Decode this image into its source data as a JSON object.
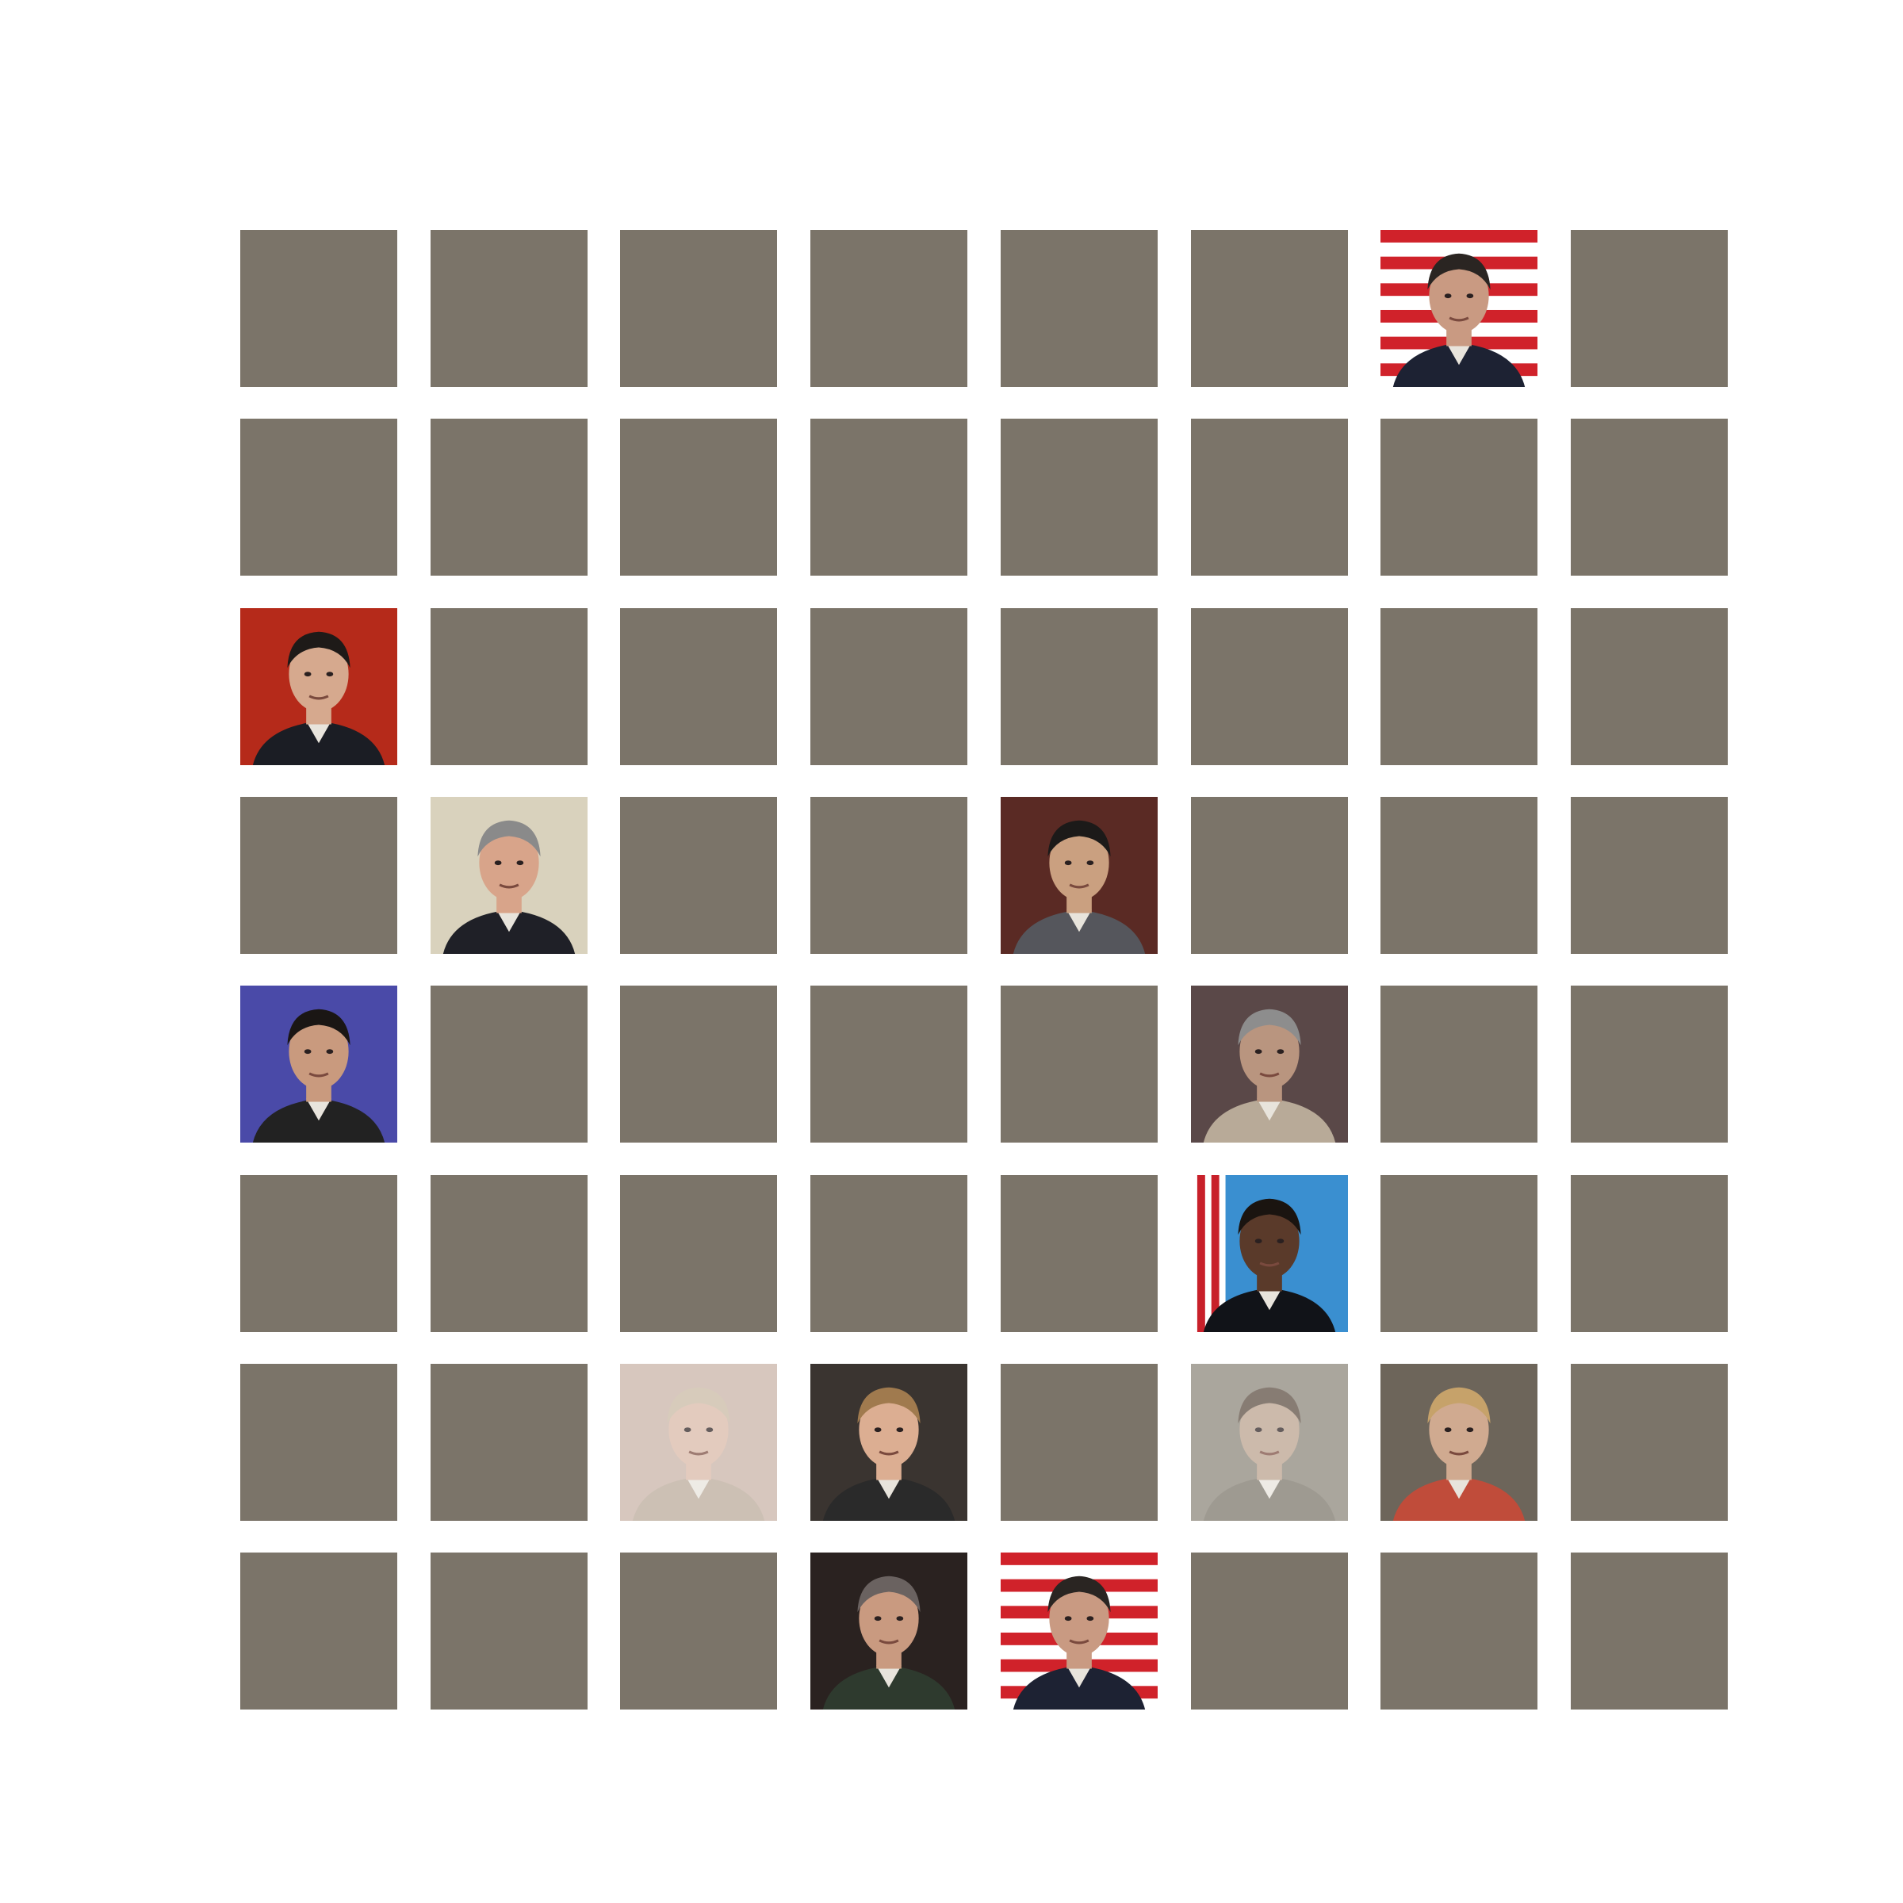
{
  "grid": {
    "rows": 8,
    "cols": 8,
    "blank_color": "#7b7469",
    "photos": [
      {
        "row": 0,
        "col": 6,
        "bg": "flag-stripes",
        "skin": "#c99a82",
        "hair": "#2a2522",
        "suit": "#1d2233",
        "name": "portrait-photo-man-flag"
      },
      {
        "row": 2,
        "col": 0,
        "bg": "#b52a1a",
        "skin": "#d6a98e",
        "hair": "#1e1a18",
        "suit": "#1b1d24",
        "name": "portrait-photo-man-red-background"
      },
      {
        "row": 3,
        "col": 1,
        "bg": "#d9d2bd",
        "skin": "#d8a48a",
        "hair": "#8a8a8a",
        "suit": "#1f2027",
        "name": "portrait-photo-older-man-gray-hair"
      },
      {
        "row": 3,
        "col": 4,
        "bg": "#5a2a24",
        "skin": "#caa080",
        "hair": "#1c1a19",
        "suit": "#55565c",
        "name": "portrait-photo-man-glasses"
      },
      {
        "row": 4,
        "col": 0,
        "bg": "#4a4aa8",
        "skin": "#c99a7e",
        "hair": "#1a1614",
        "suit": "#222222",
        "name": "portrait-photo-man-blue-background"
      },
      {
        "row": 4,
        "col": 5,
        "bg": "#5a4848",
        "skin": "#b9957f",
        "hair": "#8d8d8d",
        "suit": "#b8aa98",
        "name": "portrait-photo-man-glasses-mustache"
      },
      {
        "row": 5,
        "col": 5,
        "bg": "flag-blue",
        "skin": "#5a3a2a",
        "hair": "#1a1410",
        "suit": "#111318",
        "name": "portrait-photo-man-flags"
      },
      {
        "row": 6,
        "col": 2,
        "bg": "#c9b2a6",
        "skin": "#d9b8a6",
        "hair": "#c8b8a2",
        "suit": "#b9a898",
        "name": "portrait-photo-faded-blonde",
        "faded": true
      },
      {
        "row": 6,
        "col": 3,
        "bg": "#3a3430",
        "skin": "#dcae92",
        "hair": "#a07a4e",
        "suit": "#2a2a2a",
        "name": "portrait-photo-young-man"
      },
      {
        "row": 6,
        "col": 5,
        "bg": "#8a8478",
        "skin": "#b9a08c",
        "hair": "#5a4a3e",
        "suit": "#7a7468",
        "name": "portrait-photo-faded-woman",
        "faded": true
      },
      {
        "row": 6,
        "col": 6,
        "bg": "#6d655a",
        "skin": "#d0aa90",
        "hair": "#c6a26a",
        "suit": "#c04c3a",
        "name": "portrait-photo-woman-blonde"
      },
      {
        "row": 7,
        "col": 3,
        "bg": "#2a2220",
        "skin": "#c99a80",
        "hair": "#6a6260",
        "suit": "#2e3a2e",
        "name": "portrait-photo-man-uniform"
      },
      {
        "row": 7,
        "col": 4,
        "bg": "flag-stripes",
        "skin": "#c99a82",
        "hair": "#2a2522",
        "suit": "#1d2233",
        "name": "portrait-photo-man-flag-duplicate"
      }
    ]
  }
}
